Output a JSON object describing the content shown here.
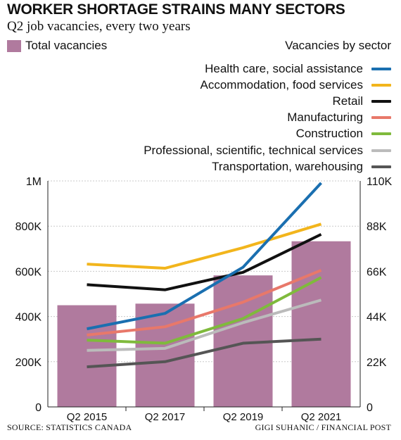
{
  "header": {
    "title": "WORKER SHORTAGE STRAINS MANY SECTORS",
    "subtitle": "Q2 job vacancies, every two years",
    "bar_legend_label": "Total vacancies",
    "sector_legend_title": "Vacancies by sector"
  },
  "footer": {
    "source": "SOURCE: STATISTICS CANADA",
    "credit": "GIGI SUHANIC / FINANCIAL POST"
  },
  "chart_data": {
    "type": "bar",
    "title": "WORKER SHORTAGE STRAINS MANY SECTORS",
    "subtitle": "Q2 job vacancies, every two years",
    "categories": [
      "Q2 2015",
      "Q2 2017",
      "Q2 2019",
      "Q2 2021"
    ],
    "bar_series": {
      "name": "Total vacancies",
      "axis": "left",
      "color": "#b07a9e",
      "values": [
        450000,
        457000,
        582000,
        733000
      ]
    },
    "line_series": [
      {
        "name": "Health care, social assistance",
        "color": "#1a6fb0",
        "axis": "right",
        "values": [
          38000,
          45500,
          68000,
          109000
        ]
      },
      {
        "name": "Accommodation, food services",
        "color": "#f2b51c",
        "axis": "right",
        "values": [
          69500,
          67500,
          77500,
          89000
        ]
      },
      {
        "name": "Retail",
        "color": "#111111",
        "axis": "right",
        "values": [
          59500,
          57000,
          65500,
          84000
        ]
      },
      {
        "name": "Manufacturing",
        "color": "#e8786a",
        "axis": "right",
        "values": [
          35000,
          39000,
          51000,
          66500
        ]
      },
      {
        "name": "Construction",
        "color": "#7fba3c",
        "axis": "right",
        "values": [
          32500,
          31000,
          43000,
          63000
        ]
      },
      {
        "name": "Professional, scientific, technical services",
        "color": "#bbbbbb",
        "axis": "right",
        "values": [
          27500,
          28500,
          41000,
          52000
        ]
      },
      {
        "name": "Transportation, warehousing",
        "color": "#555555",
        "axis": "right",
        "values": [
          19500,
          22000,
          31000,
          33000
        ]
      }
    ],
    "y_left": {
      "min": 0,
      "max": 1000000,
      "ticks": [
        0,
        200000,
        400000,
        600000,
        800000,
        1000000
      ],
      "tick_labels": [
        "0",
        "200K",
        "400K",
        "600K",
        "800K",
        "1M"
      ]
    },
    "y_right": {
      "min": 0,
      "max": 110000,
      "ticks": [
        0,
        22000,
        44000,
        66000,
        88000,
        110000
      ],
      "tick_labels": [
        "0",
        "22K",
        "44K",
        "66K",
        "88K",
        "110K"
      ]
    },
    "grid": true,
    "legend_placement": "top-right"
  }
}
